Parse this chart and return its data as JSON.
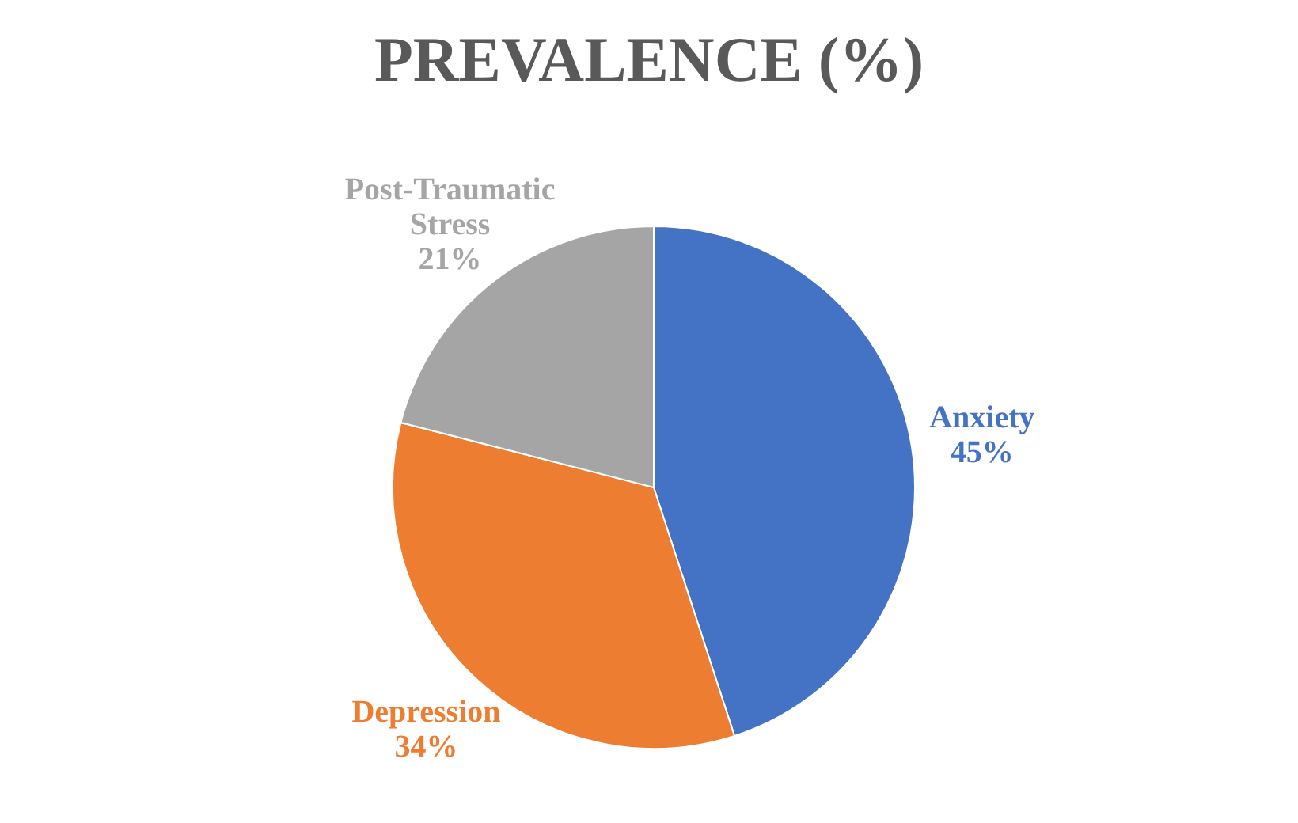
{
  "chart_data": {
    "type": "pie",
    "title": "PREVALENCE (%)",
    "categories": [
      "Anxiety",
      "Depression",
      "Post-Traumatic Stress"
    ],
    "values": [
      45,
      34,
      21
    ],
    "value_labels": [
      "45%",
      "34%",
      "21%"
    ],
    "colors": [
      "#4472c4",
      "#ed7d31",
      "#a5a5a5"
    ],
    "legend": false
  }
}
